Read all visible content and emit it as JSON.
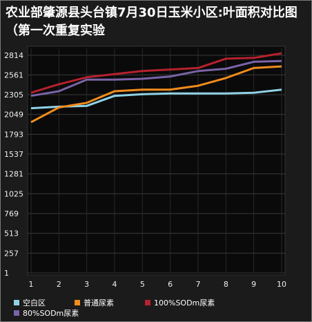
{
  "chart_data": {
    "type": "line",
    "title": "农业部肇源县头台镇7月30日玉米小区:叶面积对比图（第一次重复实验",
    "x": [
      1,
      2,
      3,
      4,
      5,
      6,
      7,
      8,
      9,
      10
    ],
    "y_ticks": [
      1,
      257,
      513,
      769,
      1025,
      1281,
      1537,
      1793,
      2049,
      2305,
      2561,
      2814
    ],
    "ylim": [
      1,
      2814
    ],
    "grid": true,
    "legend_position": "bottom",
    "series": [
      {
        "name": "空白区",
        "color": "#8fd3e6",
        "values": [
          2130,
          2150,
          2160,
          2290,
          2310,
          2320,
          2320,
          2320,
          2330,
          2370
        ]
      },
      {
        "name": "普通尿素",
        "color": "#f28c1c",
        "values": [
          1950,
          2140,
          2200,
          2350,
          2370,
          2370,
          2420,
          2520,
          2650,
          2670
        ]
      },
      {
        "name": "100%SODm尿素",
        "color": "#b7212e",
        "values": [
          2330,
          2440,
          2530,
          2570,
          2610,
          2630,
          2650,
          2770,
          2780,
          2840
        ]
      },
      {
        "name": "80%SODm尿素",
        "color": "#7a64a8",
        "values": [
          2290,
          2350,
          2500,
          2500,
          2510,
          2540,
          2610,
          2640,
          2730,
          2740
        ]
      }
    ]
  }
}
